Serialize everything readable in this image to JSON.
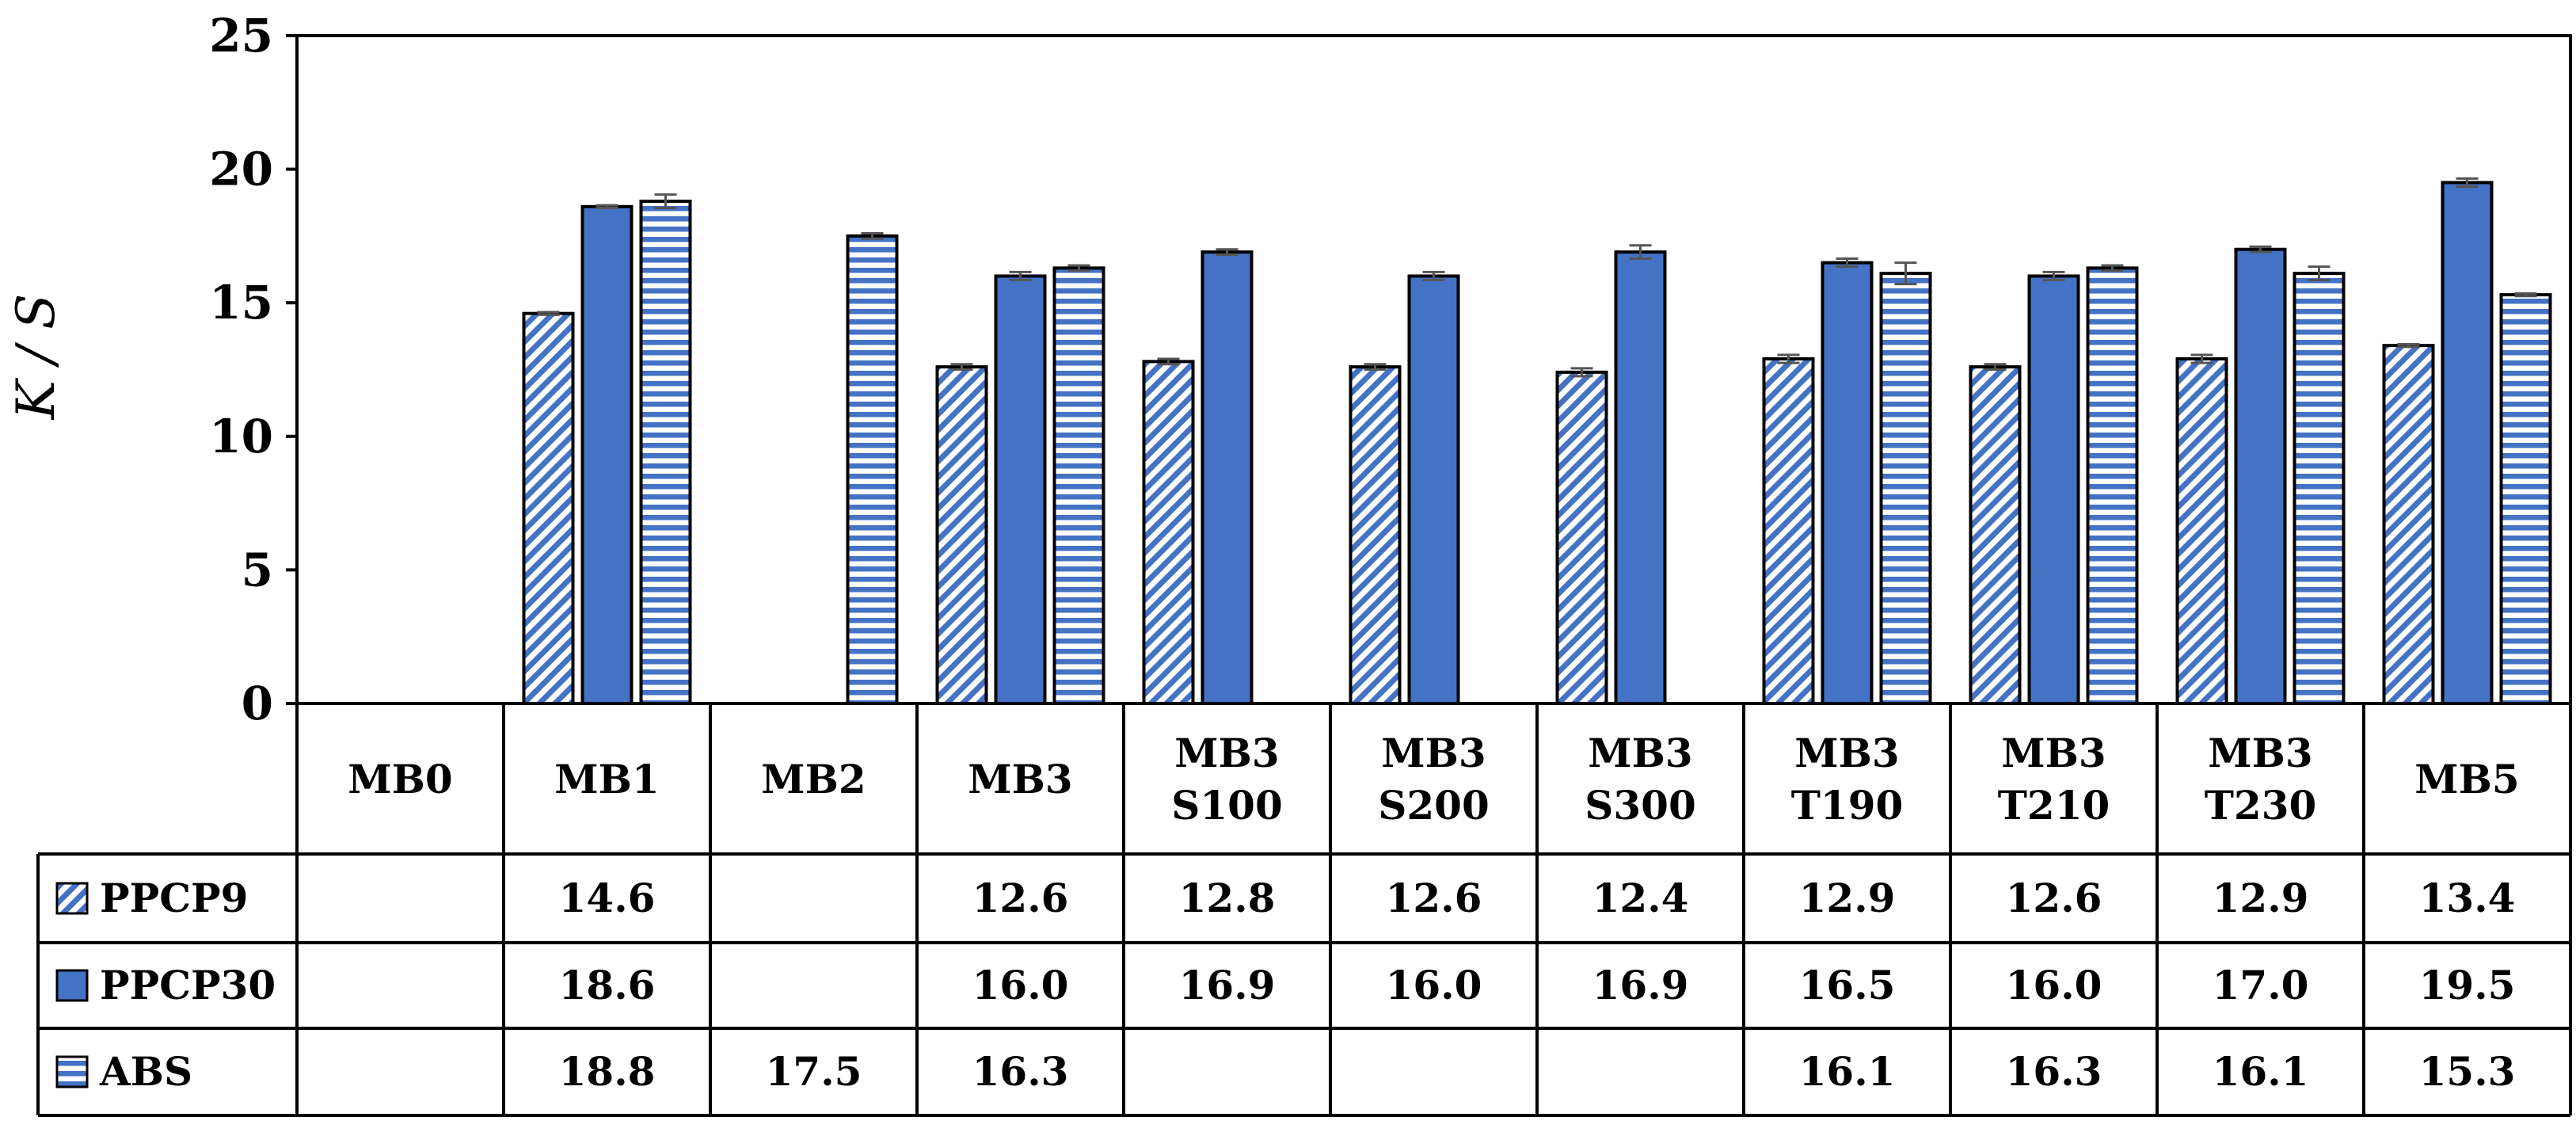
{
  "chart_data": {
    "type": "bar",
    "ylabel": "K / S",
    "ylim": [
      0,
      25
    ],
    "yticks": [
      0,
      5,
      10,
      15,
      20,
      25
    ],
    "grid": false,
    "legend": "data-table-below",
    "categories": [
      [
        "MB0"
      ],
      [
        "MB1"
      ],
      [
        "MB2"
      ],
      [
        "MB3"
      ],
      [
        "MB3",
        "S100"
      ],
      [
        "MB3",
        "S200"
      ],
      [
        "MB3",
        "S300"
      ],
      [
        "MB3",
        "T190"
      ],
      [
        "MB3",
        "T210"
      ],
      [
        "MB3",
        "T230"
      ],
      [
        "MB5"
      ]
    ],
    "series": [
      {
        "name": "PPCP9",
        "pattern": "diagonal",
        "color": "#4472C4",
        "values": [
          null,
          14.6,
          null,
          12.6,
          12.8,
          12.6,
          12.4,
          12.9,
          12.6,
          12.9,
          13.4
        ],
        "errors": [
          null,
          0.05,
          null,
          0.1,
          0.1,
          0.1,
          0.15,
          0.15,
          0.1,
          0.15,
          0.05
        ]
      },
      {
        "name": "PPCP30",
        "pattern": "solid",
        "color": "#4472C4",
        "values": [
          null,
          18.6,
          null,
          16.0,
          16.9,
          16.0,
          16.9,
          16.5,
          16.0,
          17.0,
          19.5
        ],
        "errors": [
          null,
          0.05,
          null,
          0.15,
          0.1,
          0.15,
          0.25,
          0.15,
          0.15,
          0.1,
          0.15
        ]
      },
      {
        "name": "ABS",
        "pattern": "horizontal",
        "color": "#4472C4",
        "values": [
          null,
          18.8,
          17.5,
          16.3,
          null,
          null,
          null,
          16.1,
          16.3,
          16.1,
          15.3
        ],
        "errors": [
          null,
          0.25,
          0.1,
          0.1,
          null,
          null,
          null,
          0.4,
          0.1,
          0.25,
          0.05
        ]
      }
    ],
    "table_values": [
      [
        "",
        "14.6",
        "",
        "12.6",
        "12.8",
        "12.6",
        "12.4",
        "12.9",
        "12.6",
        "12.9",
        "13.4"
      ],
      [
        "",
        "18.6",
        "",
        "16.0",
        "16.9",
        "16.0",
        "16.9",
        "16.5",
        "16.0",
        "17.0",
        "19.5"
      ],
      [
        "",
        "18.8",
        "17.5",
        "16.3",
        "",
        "",
        "",
        "16.1",
        "16.3",
        "16.1",
        "15.3"
      ]
    ]
  }
}
